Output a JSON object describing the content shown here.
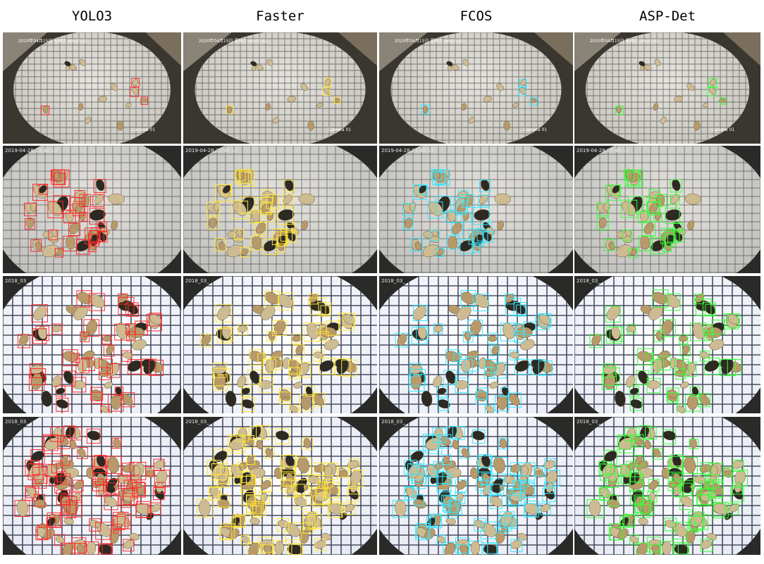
{
  "figure": {
    "columns": [
      {
        "title": "YOLO3",
        "box_color": "#ff2a2a"
      },
      {
        "title": "Faster",
        "box_color": "#ffe533"
      },
      {
        "title": "FCOS",
        "box_color": "#33e6ff"
      },
      {
        "title": "ASP-Det",
        "box_color": "#33ff33"
      }
    ],
    "rows": [
      {
        "scene": "sparse-trap",
        "stamp": "2020年04月15日 星期三 00:00:32",
        "camera": "Camera 01",
        "tint": "#c9c7c0"
      },
      {
        "scene": "dense-cluster",
        "stamp": "2019-04-28 23:48:10",
        "camera": "",
        "tint": "#bdbdba"
      },
      {
        "scene": "bright-trap",
        "stamp": "2018_03_",
        "camera": "",
        "tint": "#e8ecf5"
      },
      {
        "scene": "crowded-trap",
        "stamp": "2018_03_",
        "camera": "",
        "tint": "#e4e8f2"
      }
    ]
  }
}
